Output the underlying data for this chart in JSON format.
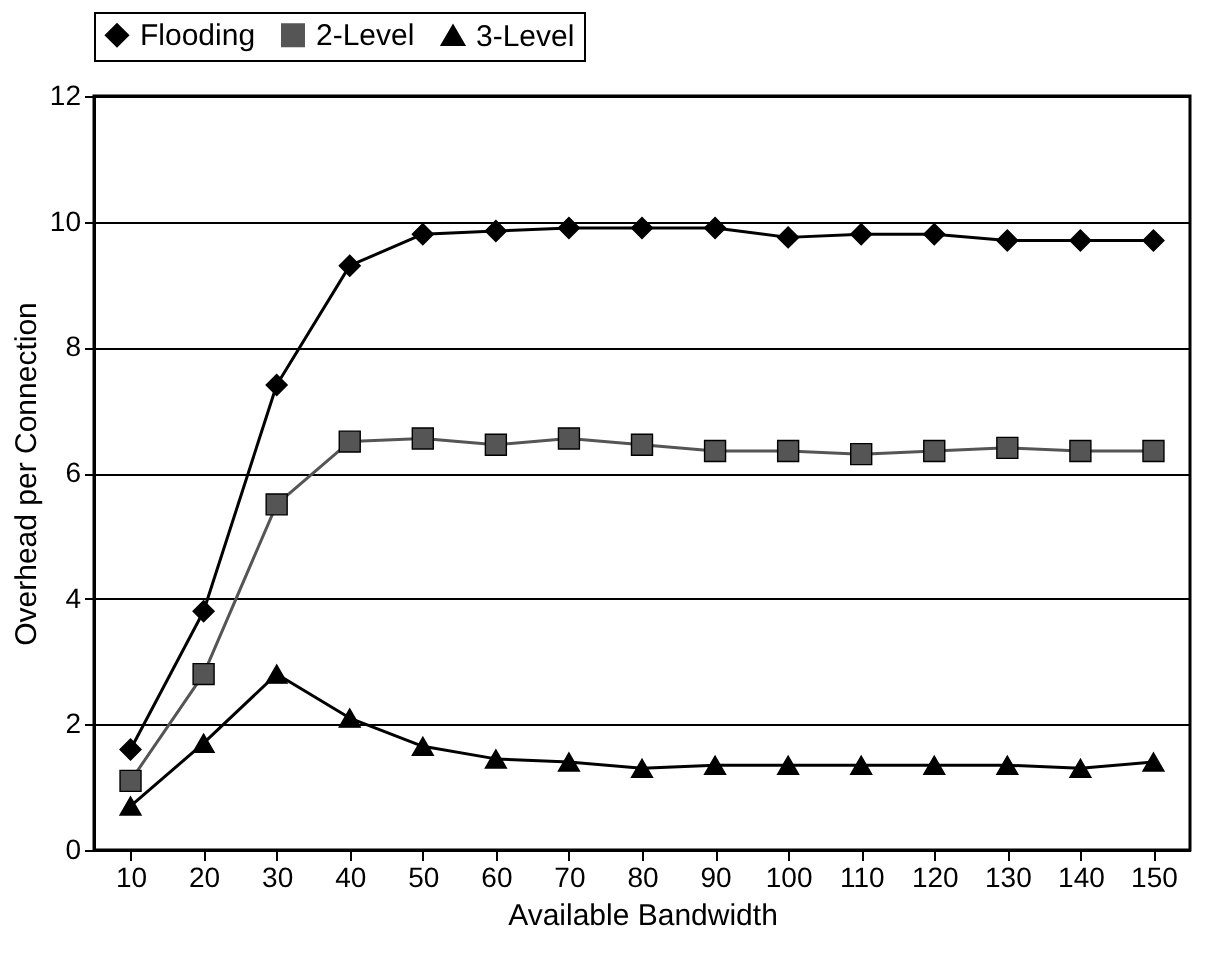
{
  "chart_data": {
    "type": "line",
    "xlabel": "Available Bandwidth",
    "ylabel": "Overhead per Connection",
    "categories": [
      "10",
      "20",
      "30",
      "40",
      "50",
      "60",
      "70",
      "80",
      "90",
      "100",
      "110",
      "120",
      "130",
      "140",
      "150"
    ],
    "series": [
      {
        "name": "Flooding",
        "color": "#000000",
        "marker": "diamond",
        "values": [
          1.6,
          3.8,
          7.4,
          9.3,
          9.8,
          9.85,
          9.9,
          9.9,
          9.9,
          9.75,
          9.8,
          9.8,
          9.7,
          9.7,
          9.7
        ]
      },
      {
        "name": "2-Level",
        "color": "#555555",
        "marker": "square",
        "values": [
          1.1,
          2.8,
          5.5,
          6.5,
          6.55,
          6.45,
          6.55,
          6.45,
          6.35,
          6.35,
          6.3,
          6.35,
          6.4,
          6.35,
          6.35
        ]
      },
      {
        "name": "3-Level",
        "color": "#000000",
        "marker": "triangle",
        "values": [
          0.7,
          1.7,
          2.8,
          2.1,
          1.65,
          1.45,
          1.4,
          1.3,
          1.35,
          1.35,
          1.35,
          1.35,
          1.35,
          1.3,
          1.4
        ]
      }
    ],
    "ylim": [
      0,
      12
    ],
    "yticks": [
      0,
      2,
      4,
      6,
      8,
      10,
      12
    ],
    "grid": "y",
    "legend": "top",
    "line_style": "solid"
  }
}
